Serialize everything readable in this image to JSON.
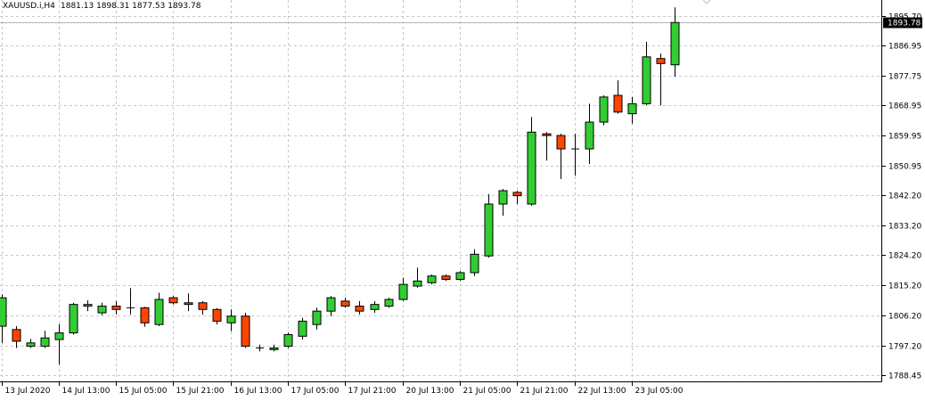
{
  "header": {
    "symbol": "XAUUSD.i,H4",
    "ohlc": "1881.13 1898.31 1877.53 1893.78"
  },
  "price_badge": "1893.78",
  "colors": {
    "bull": "#32cd32",
    "bear": "#ff4500",
    "wick": "#000000",
    "grid": "#c8c8c8",
    "badge_bg": "#000000",
    "badge_text": "#ffffff"
  },
  "chart_data": {
    "type": "candlestick",
    "title": "",
    "ylim": [
      1786.5,
      1900.5
    ],
    "y_ticks": [
      "1895.70",
      "1886.95",
      "1877.75",
      "1868.95",
      "1859.95",
      "1850.95",
      "1842.20",
      "1833.20",
      "1824.20",
      "1815.20",
      "1806.20",
      "1797.20",
      "1788.45"
    ],
    "x_ticks": [
      "13 Jul 2020",
      "14 Jul 13:00",
      "15 Jul 05:00",
      "15 Jul 21:00",
      "16 Jul 13:00",
      "17 Jul 05:00",
      "17 Jul 21:00",
      "20 Jul 13:00",
      "21 Jul 05:00",
      "21 Jul 21:00",
      "22 Jul 13:00",
      "23 Jul 05:00"
    ],
    "last_price": 1893.78,
    "candles": [
      {
        "o": 1803.0,
        "h": 1812.5,
        "l": 1798.0,
        "c": 1811.5
      },
      {
        "o": 1802.0,
        "h": 1803.0,
        "l": 1796.5,
        "c": 1798.5
      },
      {
        "o": 1797.0,
        "h": 1799.2,
        "l": 1796.5,
        "c": 1798.0
      },
      {
        "o": 1797.0,
        "h": 1801.6,
        "l": 1796.5,
        "c": 1799.5
      },
      {
        "o": 1799.0,
        "h": 1803.6,
        "l": 1791.5,
        "c": 1801.0
      },
      {
        "o": 1801.0,
        "h": 1810.0,
        "l": 1800.5,
        "c": 1809.5
      },
      {
        "o": 1809.0,
        "h": 1810.7,
        "l": 1807.5,
        "c": 1809.5
      },
      {
        "o": 1807.0,
        "h": 1810.0,
        "l": 1806.3,
        "c": 1809.0
      },
      {
        "o": 1809.0,
        "h": 1810.5,
        "l": 1806.5,
        "c": 1808.0
      },
      {
        "o": 1808.5,
        "h": 1814.4,
        "l": 1806.5,
        "c": 1808.5
      },
      {
        "o": 1808.5,
        "h": 1808.8,
        "l": 1802.8,
        "c": 1804.0
      },
      {
        "o": 1803.5,
        "h": 1813.0,
        "l": 1803.0,
        "c": 1811.0
      },
      {
        "o": 1811.5,
        "h": 1812.0,
        "l": 1809.5,
        "c": 1810.0
      },
      {
        "o": 1810.0,
        "h": 1812.8,
        "l": 1807.5,
        "c": 1809.5
      },
      {
        "o": 1810.0,
        "h": 1810.5,
        "l": 1806.5,
        "c": 1808.0
      },
      {
        "o": 1808.0,
        "h": 1808.4,
        "l": 1803.5,
        "c": 1804.5
      },
      {
        "o": 1804.0,
        "h": 1808.0,
        "l": 1801.5,
        "c": 1806.0
      },
      {
        "o": 1806.0,
        "h": 1807.0,
        "l": 1796.5,
        "c": 1797.0
      },
      {
        "o": 1796.5,
        "h": 1797.5,
        "l": 1795.5,
        "c": 1796.5
      },
      {
        "o": 1796.0,
        "h": 1797.5,
        "l": 1795.5,
        "c": 1796.5
      },
      {
        "o": 1797.0,
        "h": 1801.0,
        "l": 1796.5,
        "c": 1800.5
      },
      {
        "o": 1800.0,
        "h": 1805.5,
        "l": 1799.0,
        "c": 1804.5
      },
      {
        "o": 1803.5,
        "h": 1808.5,
        "l": 1802.0,
        "c": 1807.5
      },
      {
        "o": 1807.5,
        "h": 1812.0,
        "l": 1806.0,
        "c": 1811.5
      },
      {
        "o": 1810.5,
        "h": 1811.5,
        "l": 1808.5,
        "c": 1809.0
      },
      {
        "o": 1809.0,
        "h": 1810.5,
        "l": 1806.5,
        "c": 1807.5
      },
      {
        "o": 1808.0,
        "h": 1810.5,
        "l": 1807.0,
        "c": 1809.5
      },
      {
        "o": 1809.0,
        "h": 1811.5,
        "l": 1808.5,
        "c": 1811.0
      },
      {
        "o": 1811.0,
        "h": 1817.5,
        "l": 1810.5,
        "c": 1815.5
      },
      {
        "o": 1815.0,
        "h": 1820.5,
        "l": 1814.5,
        "c": 1816.5
      },
      {
        "o": 1816.0,
        "h": 1818.5,
        "l": 1815.5,
        "c": 1818.0
      },
      {
        "o": 1818.0,
        "h": 1818.5,
        "l": 1816.5,
        "c": 1817.0
      },
      {
        "o": 1817.0,
        "h": 1819.5,
        "l": 1816.5,
        "c": 1819.0
      },
      {
        "o": 1819.0,
        "h": 1826.0,
        "l": 1818.0,
        "c": 1824.5
      },
      {
        "o": 1824.0,
        "h": 1842.5,
        "l": 1823.5,
        "c": 1839.5
      },
      {
        "o": 1839.5,
        "h": 1844.0,
        "l": 1836.0,
        "c": 1843.5
      },
      {
        "o": 1843.0,
        "h": 1843.5,
        "l": 1839.5,
        "c": 1842.0
      },
      {
        "o": 1839.5,
        "h": 1865.5,
        "l": 1839.0,
        "c": 1861.0
      },
      {
        "o": 1860.5,
        "h": 1861.0,
        "l": 1852.5,
        "c": 1860.0
      },
      {
        "o": 1860.0,
        "h": 1860.5,
        "l": 1847.0,
        "c": 1856.0
      },
      {
        "o": 1856.0,
        "h": 1860.5,
        "l": 1848.0,
        "c": 1856.0
      },
      {
        "o": 1856.0,
        "h": 1869.5,
        "l": 1851.5,
        "c": 1864.0
      },
      {
        "o": 1864.0,
        "h": 1872.0,
        "l": 1863.0,
        "c": 1871.5
      },
      {
        "o": 1872.0,
        "h": 1876.5,
        "l": 1866.5,
        "c": 1867.0
      },
      {
        "o": 1866.5,
        "h": 1871.5,
        "l": 1863.5,
        "c": 1869.5
      },
      {
        "o": 1869.5,
        "h": 1888.0,
        "l": 1869.0,
        "c": 1883.5
      },
      {
        "o": 1883.0,
        "h": 1884.5,
        "l": 1869.0,
        "c": 1881.5
      },
      {
        "o": 1881.13,
        "h": 1898.31,
        "l": 1877.53,
        "c": 1893.78
      }
    ]
  }
}
